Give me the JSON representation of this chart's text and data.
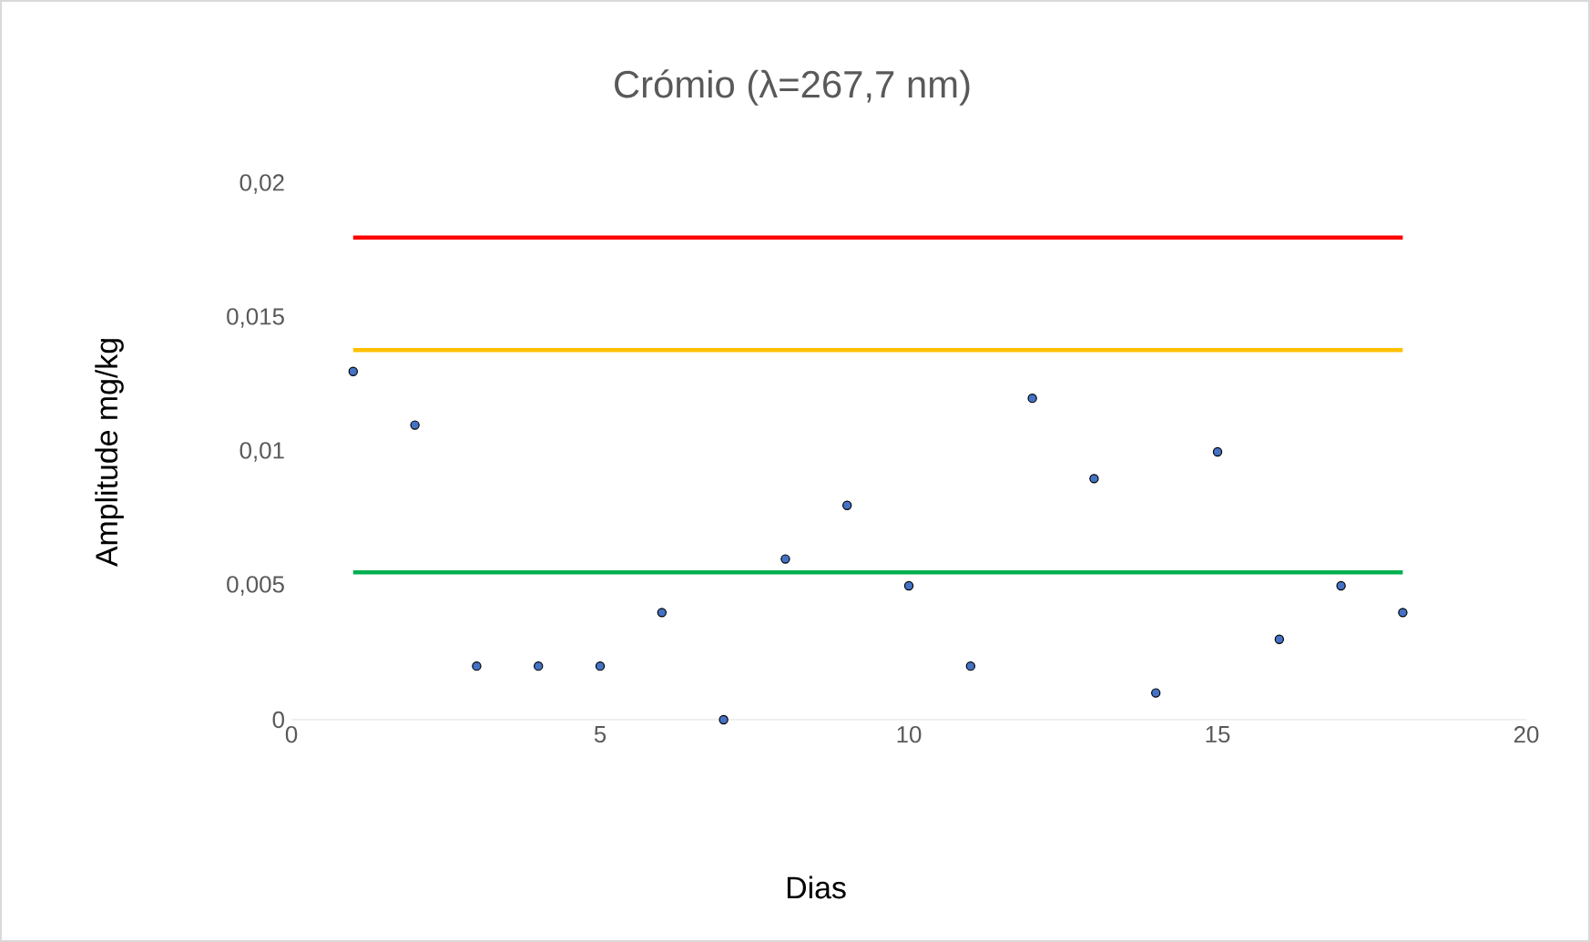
{
  "chart_data": {
    "type": "scatter",
    "title": "Crómio (λ=267,7 nm)",
    "xlabel": "Dias",
    "ylabel": "Amplitude mg/kg",
    "xlim": [
      0,
      20
    ],
    "xticks": [
      0,
      5,
      10,
      15,
      20
    ],
    "ylim": [
      0,
      0.02
    ],
    "yticks": [
      {
        "value": 0,
        "label": "0"
      },
      {
        "value": 0.005,
        "label": "0,005"
      },
      {
        "value": 0.01,
        "label": "0,01"
      },
      {
        "value": 0.015,
        "label": "0,015"
      },
      {
        "value": 0.02,
        "label": "0,02"
      }
    ],
    "series": [
      {
        "type": "line",
        "marker": "none",
        "color": "#ff0000",
        "x": [
          1,
          18
        ],
        "values": [
          0.018,
          0.018
        ]
      },
      {
        "type": "line",
        "marker": "none",
        "color": "#ffc000",
        "x": [
          1,
          18
        ],
        "values": [
          0.0138,
          0.0138
        ]
      },
      {
        "type": "line",
        "marker": "none",
        "color": "#00b050",
        "x": [
          1,
          18
        ],
        "values": [
          0.0055,
          0.0055
        ]
      },
      {
        "marker": "circle",
        "color": "#4472c4",
        "x": [
          1,
          2,
          3,
          4,
          5,
          6,
          7,
          8,
          9,
          10,
          11,
          12,
          13,
          14,
          15,
          16,
          17,
          18
        ],
        "values": [
          0.013,
          0.011,
          0.002,
          0.002,
          0.002,
          0.004,
          0,
          0.006,
          0.008,
          0.005,
          0.002,
          0.012,
          0.009,
          0.001,
          0.01,
          0.003,
          0.005,
          0.004
        ]
      }
    ]
  }
}
